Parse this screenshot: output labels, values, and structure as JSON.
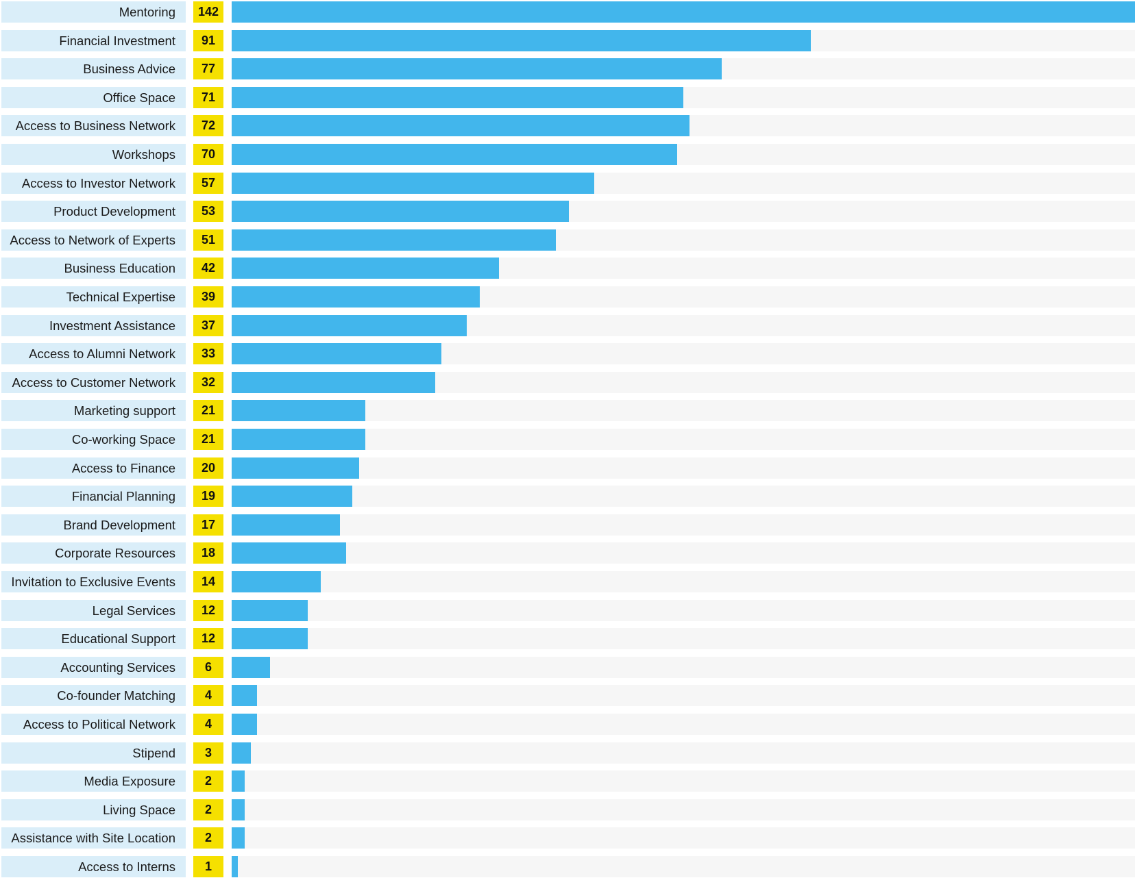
{
  "chart_data": {
    "type": "bar",
    "orientation": "horizontal",
    "title": "",
    "xlabel": "",
    "ylabel": "",
    "xlim": [
      0,
      142
    ],
    "grid": false,
    "categories": [
      "Mentoring",
      "Financial Investment",
      "Business Advice",
      "Office Space",
      "Access to Business Network",
      "Workshops",
      "Access to Investor Network",
      "Product Development",
      "Access to Network of Experts",
      "Business Education",
      "Technical Expertise",
      "Investment Assistance",
      "Access to Alumni Network",
      "Access to Customer Network",
      "Marketing support",
      "Co-working Space",
      "Access to Finance",
      "Financial Planning",
      "Brand Development",
      "Corporate Resources",
      "Invitation to Exclusive Events",
      "Legal Services",
      "Educational Support",
      "Accounting Services",
      "Co-founder Matching",
      "Access to Political Network",
      "Stipend",
      "Media Exposure",
      "Living Space",
      "Assistance with Site Location",
      "Access to Interns"
    ],
    "values": [
      142,
      91,
      77,
      71,
      72,
      70,
      57,
      53,
      51,
      42,
      39,
      37,
      33,
      32,
      21,
      21,
      20,
      19,
      17,
      18,
      14,
      12,
      12,
      6,
      4,
      4,
      3,
      2,
      2,
      2,
      1
    ],
    "colors": {
      "bar": "#42b6ec",
      "track": "#f6f6f6",
      "label_bg": "#daeef9",
      "value_bg": "#f5e000"
    }
  }
}
